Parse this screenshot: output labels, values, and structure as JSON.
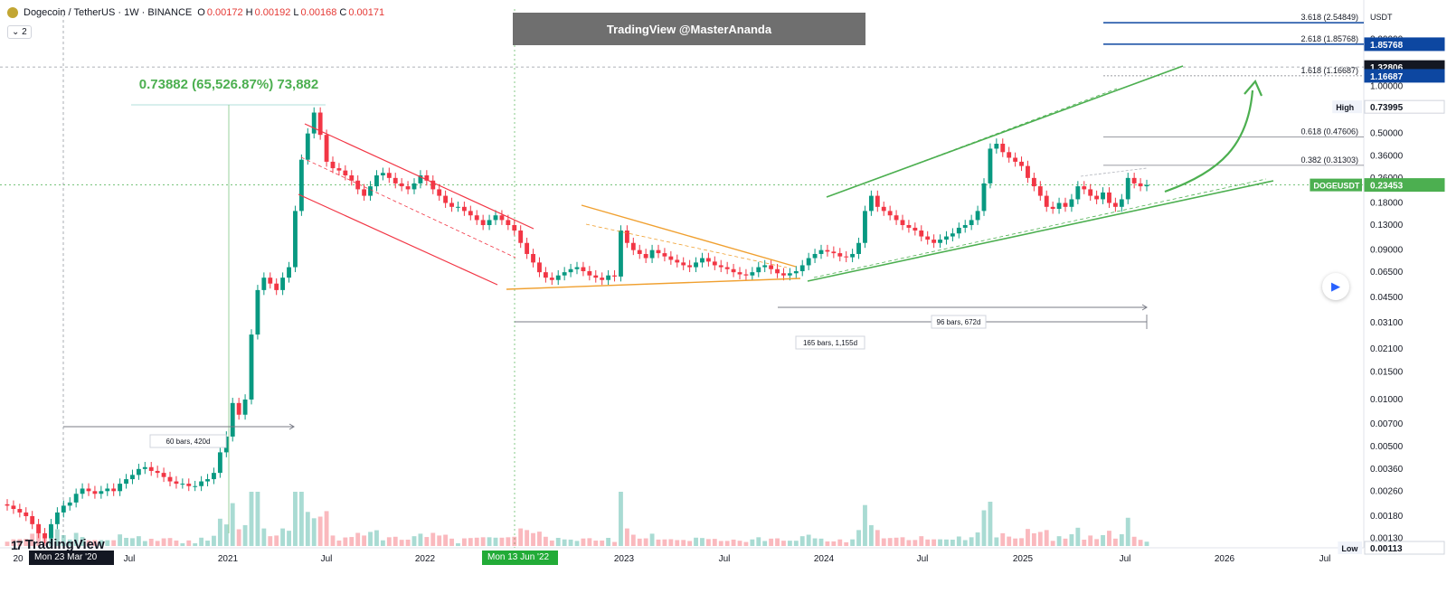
{
  "header": {
    "symbol": "Dogecoin / TetherUS · 1W · BINANCE",
    "o_label": "O",
    "o_val": "0.00172",
    "h_label": "H",
    "h_val": "0.00192",
    "l_label": "L",
    "l_val": "0.00168",
    "c_label": "C",
    "c_val": "0.00171",
    "indicator": "⌄ 2"
  },
  "watermark": "TradingView @MasterAnanda",
  "logo": "TradingView",
  "currency": "USDT",
  "colors": {
    "up": "#089981",
    "down": "#f23645",
    "accent": "#2962ff",
    "green_line": "#4caf50",
    "red_line": "#f23645",
    "orange_line": "#f0a030",
    "fib_line": "#0d47a1",
    "price_tag": "#4caf50"
  },
  "chart_data": {
    "type": "candlestick",
    "scale": "log",
    "ylim": [
      0.00113,
      3.2
    ],
    "x_tick_labels": [
      "20",
      "Jul",
      "2021",
      "Jul",
      "2022",
      "Jul",
      "2023",
      "Jul",
      "2024",
      "Jul",
      "2025",
      "Jul",
      "2026",
      "Jul"
    ],
    "y_tick_labels": [
      "2.00000",
      "1.00000",
      "0.50000",
      "0.36000",
      "0.26000",
      "0.18000",
      "0.13000",
      "0.09000",
      "0.06500",
      "0.04500",
      "0.03100",
      "0.02100",
      "0.01500",
      "0.01000",
      "0.00700",
      "0.00500",
      "0.00360",
      "0.00260",
      "0.00180",
      "0.00130"
    ],
    "price_tags": [
      {
        "label": "",
        "value": "1.85768"
      },
      {
        "label": "",
        "value": "1.32806"
      },
      {
        "label": "",
        "value": "1.16687"
      },
      {
        "label": "High",
        "value": "0.73995"
      },
      {
        "label": "DOGEUSDT",
        "value": "0.23453"
      },
      {
        "label": "Low",
        "value": "0.00113"
      }
    ],
    "fib_levels": [
      {
        "label": "3.618 (2.54849)",
        "value": 2.54849
      },
      {
        "label": "2.618 (1.85768)",
        "value": 1.85768
      },
      {
        "label": "1.618 (1.16687)",
        "value": 1.16687
      },
      {
        "label": "0.618 (0.47606)",
        "value": 0.47606
      },
      {
        "label": "0.382 (0.31303)",
        "value": 0.31303
      }
    ],
    "annotations": {
      "gain": "0.73882 (65,526.87%) 73,882",
      "range_60": "60 bars, 420d",
      "range_165": "165 bars, 1,155d",
      "range_96": "96 bars, 672d",
      "date_start": "Mon 23 Mar '20",
      "date_mid": "Mon 13 Jun '22"
    },
    "weekly_close_samples": [
      0.0021,
      0.002,
      0.0019,
      0.0018,
      0.0016,
      0.0014,
      0.0013,
      0.0016,
      0.0019,
      0.0021,
      0.0022,
      0.0025,
      0.0027,
      0.0026,
      0.0025,
      0.0026,
      0.0027,
      0.0026,
      0.0029,
      0.0031,
      0.0033,
      0.0036,
      0.0037,
      0.0035,
      0.0034,
      0.0032,
      0.003,
      0.0029,
      0.0029,
      0.0028,
      0.0028,
      0.003,
      0.0031,
      0.0034,
      0.0046,
      0.0058,
      0.0095,
      0.008,
      0.01,
      0.026,
      0.05,
      0.06,
      0.055,
      0.05,
      0.06,
      0.07,
      0.16,
      0.34,
      0.5,
      0.68,
      0.49,
      0.33,
      0.3,
      0.29,
      0.27,
      0.25,
      0.22,
      0.2,
      0.23,
      0.27,
      0.28,
      0.26,
      0.24,
      0.23,
      0.22,
      0.24,
      0.27,
      0.25,
      0.22,
      0.2,
      0.18,
      0.17,
      0.17,
      0.16,
      0.15,
      0.14,
      0.13,
      0.14,
      0.15,
      0.14,
      0.13,
      0.12,
      0.1,
      0.085,
      0.075,
      0.065,
      0.06,
      0.058,
      0.062,
      0.065,
      0.068,
      0.07,
      0.066,
      0.062,
      0.06,
      0.058,
      0.062,
      0.061,
      0.12,
      0.1,
      0.09,
      0.085,
      0.08,
      0.09,
      0.086,
      0.082,
      0.078,
      0.075,
      0.072,
      0.07,
      0.075,
      0.08,
      0.076,
      0.072,
      0.07,
      0.068,
      0.065,
      0.063,
      0.062,
      0.065,
      0.07,
      0.072,
      0.068,
      0.064,
      0.062,
      0.064,
      0.066,
      0.072,
      0.08,
      0.085,
      0.09,
      0.088,
      0.086,
      0.082,
      0.081,
      0.085,
      0.1,
      0.16,
      0.2,
      0.17,
      0.16,
      0.15,
      0.14,
      0.13,
      0.125,
      0.12,
      0.11,
      0.105,
      0.1,
      0.105,
      0.11,
      0.115,
      0.125,
      0.13,
      0.14,
      0.16,
      0.24,
      0.4,
      0.43,
      0.38,
      0.35,
      0.33,
      0.31,
      0.26,
      0.23,
      0.2,
      0.17,
      0.165,
      0.18,
      0.17,
      0.19,
      0.23,
      0.22,
      0.2,
      0.19,
      0.21,
      0.18,
      0.17,
      0.19,
      0.26,
      0.24,
      0.23,
      0.2345
    ]
  }
}
